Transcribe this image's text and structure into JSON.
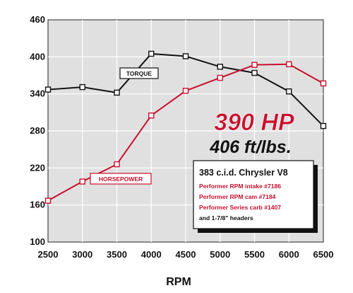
{
  "chart_data": {
    "type": "line",
    "x": [
      2500,
      3000,
      3500,
      4000,
      4500,
      5000,
      5500,
      6000,
      6500
    ],
    "xlabel": "RPM",
    "ylabel": "",
    "xlim": [
      2500,
      6500
    ],
    "ylim": [
      100,
      460
    ],
    "x_ticks": [
      "2500",
      "3000",
      "3500",
      "4000",
      "4500",
      "5000",
      "5500",
      "6000",
      "6500"
    ],
    "y_ticks": [
      "100",
      "160",
      "220",
      "280",
      "340",
      "400",
      "460"
    ],
    "grid": true,
    "series": [
      {
        "name": "TORQUE",
        "color": "#111111",
        "values": [
          347,
          351,
          342,
          405,
          401,
          384,
          374,
          344,
          288
        ]
      },
      {
        "name": "HORSEPOWER",
        "color": "#c8102e",
        "values": [
          167,
          198,
          226,
          305,
          345,
          366,
          387,
          388,
          357
        ]
      }
    ],
    "annotations": {
      "hp_headline": "390 HP",
      "torque_headline": "406 ft/lbs.",
      "spec_title": "383 c.i.d. Chrysler V8",
      "spec_lines": [
        "Performer RPM intake #7186",
        "Performer RPM cam #7184",
        "Performer Series carb #1407",
        "and 1-7/8\" headers"
      ]
    },
    "colors": {
      "plot_background": "#e0e0e0",
      "grid": "#ffffff",
      "accent_red": "#c8102e"
    }
  }
}
